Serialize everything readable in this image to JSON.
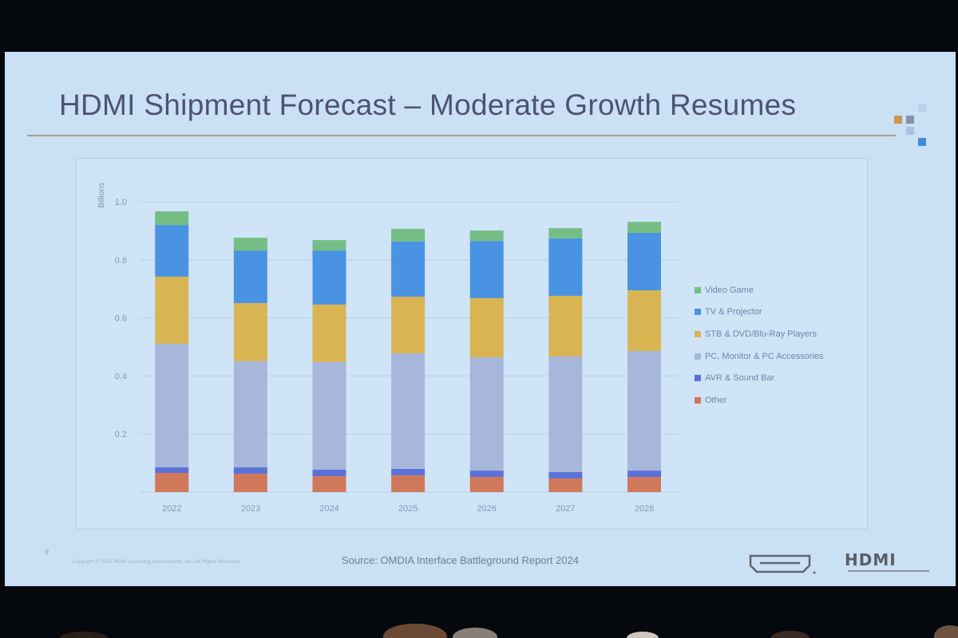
{
  "slide": {
    "title": "HDMI Shipment Forecast – Moderate Growth Resumes",
    "page_number": "9",
    "copyright": "Copyright © 2025 HDMI Licensing Administrator, Inc. All Rights Reserved.",
    "source": "Source: OMDIA Interface Battleground Report 2024",
    "logo_text": "HDMI",
    "logo_icon": "hdmi-port-icon",
    "deco_colors": [
      "#b9d2ea",
      "#c9974d",
      "#8490ad",
      "#a9c2e0",
      "#3d8fd6"
    ]
  },
  "chart_data": {
    "type": "bar",
    "stacked": true,
    "title": "",
    "xlabel": "",
    "ylabel": "Billions",
    "ylim": [
      0,
      1.0
    ],
    "yticks": [
      "",
      "0.2",
      "0.4",
      "0.6",
      "0.8",
      "1.0"
    ],
    "ytick_values": [
      0,
      0.2,
      0.4,
      0.6,
      0.8,
      1.0
    ],
    "grid": true,
    "legend_position": "right",
    "categories": [
      "2022",
      "2023",
      "2024",
      "2025",
      "2026",
      "2027",
      "2028"
    ],
    "series": [
      {
        "name": "Other",
        "color": "#d0785a",
        "values": [
          0.066,
          0.063,
          0.055,
          0.058,
          0.052,
          0.047,
          0.052
        ]
      },
      {
        "name": "AVR & Sound Bar",
        "color": "#5a72d8",
        "values": [
          0.019,
          0.022,
          0.022,
          0.022,
          0.022,
          0.022,
          0.022
        ]
      },
      {
        "name": "PC, Monitor & PC Accessories",
        "color": "#a7b7dc",
        "values": [
          0.426,
          0.366,
          0.371,
          0.398,
          0.39,
          0.398,
          0.412
        ]
      },
      {
        "name": "STB & DVD/Blu-Ray Players",
        "color": "#d8b552",
        "values": [
          0.231,
          0.2,
          0.198,
          0.195,
          0.204,
          0.209,
          0.209
        ]
      },
      {
        "name": "TV & Projector",
        "color": "#4a93e2",
        "values": [
          0.178,
          0.181,
          0.186,
          0.19,
          0.197,
          0.198,
          0.198
        ]
      },
      {
        "name": "Video Game",
        "color": "#74be86",
        "values": [
          0.047,
          0.044,
          0.036,
          0.044,
          0.036,
          0.035,
          0.038
        ]
      }
    ],
    "legend_order": [
      "Video Game",
      "TV & Projector",
      "STB & DVD/Blu-Ray Players",
      "PC, Monitor & PC Accessories",
      "AVR & Sound Bar",
      "Other"
    ]
  }
}
